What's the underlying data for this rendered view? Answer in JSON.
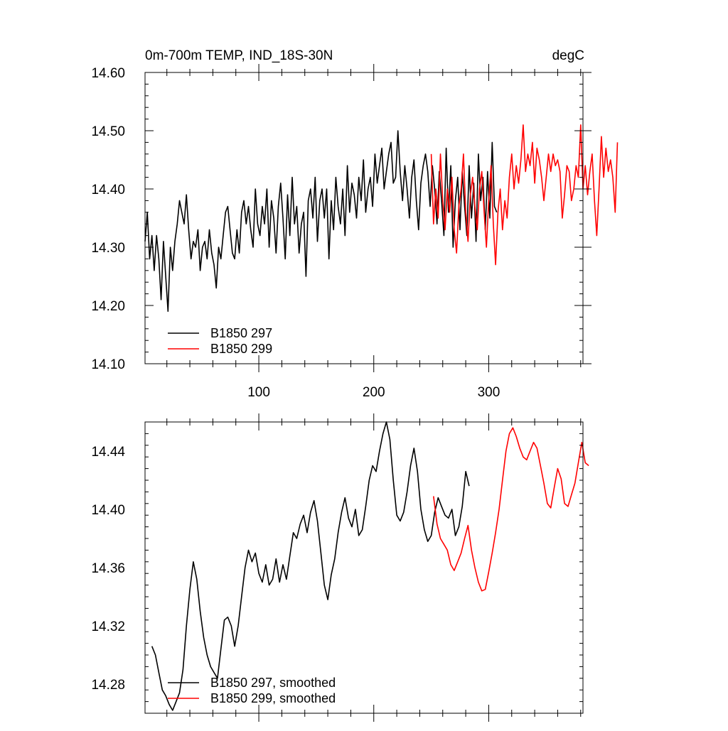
{
  "colors": {
    "background": "#ffffff",
    "axis": "#000000",
    "series_black": "#000000",
    "series_red": "#ff0000"
  },
  "chart_data": [
    {
      "type": "line",
      "title_left": "0m-700m TEMP, IND_18S-30N",
      "title_right": "degC",
      "xlabel": "",
      "ylabel": "",
      "xlim": [
        1,
        382
      ],
      "ylim": [
        14.1,
        14.6
      ],
      "x_ticks": [
        100,
        200,
        300
      ],
      "y_ticks": [
        14.1,
        14.2,
        14.3,
        14.4,
        14.5,
        14.6
      ],
      "y_tick_labels": [
        "14.10",
        "14.20",
        "14.30",
        "14.40",
        "14.50",
        "14.60"
      ],
      "x_tick_labels": [
        "100",
        "200",
        "300"
      ],
      "grid": false,
      "legend_position": "bottom-left",
      "series": [
        {
          "name": "B1850 297",
          "color": "#000000",
          "x_start": 1,
          "x_step": 2,
          "values": [
            14.31,
            14.36,
            14.28,
            14.32,
            14.26,
            14.32,
            14.28,
            14.21,
            14.31,
            14.25,
            14.19,
            14.3,
            14.26,
            14.31,
            14.34,
            14.38,
            14.36,
            14.34,
            14.39,
            14.33,
            14.28,
            14.31,
            14.3,
            14.33,
            14.26,
            14.3,
            14.31,
            14.28,
            14.33,
            14.29,
            14.27,
            14.23,
            14.3,
            14.28,
            14.32,
            14.36,
            14.37,
            14.33,
            14.29,
            14.28,
            14.33,
            14.29,
            14.36,
            14.38,
            14.34,
            14.37,
            14.33,
            14.3,
            14.4,
            14.34,
            14.32,
            14.37,
            14.34,
            14.4,
            14.3,
            14.38,
            14.35,
            14.29,
            14.37,
            14.41,
            14.35,
            14.28,
            14.39,
            14.32,
            14.42,
            14.34,
            14.37,
            14.29,
            14.34,
            14.36,
            14.25,
            14.38,
            14.4,
            14.35,
            14.42,
            14.31,
            14.38,
            14.4,
            14.35,
            14.4,
            14.28,
            14.38,
            14.33,
            14.42,
            14.37,
            14.34,
            14.4,
            14.32,
            14.44,
            14.36,
            14.41,
            14.39,
            14.35,
            14.42,
            14.38,
            14.45,
            14.36,
            14.4,
            14.42,
            14.37,
            14.46,
            14.41,
            14.44,
            14.47,
            14.4,
            14.43,
            14.46,
            14.48,
            14.41,
            14.42,
            14.5,
            14.43,
            14.38,
            14.44,
            14.4,
            14.35,
            14.42,
            14.45,
            14.38,
            14.33,
            14.41,
            14.44,
            14.46,
            14.43,
            14.37,
            14.44,
            14.4,
            14.34,
            14.43,
            14.38,
            14.32,
            14.47,
            14.36,
            14.44,
            14.3,
            14.38,
            14.42,
            14.33,
            14.43,
            14.37,
            14.32,
            14.44,
            14.35,
            14.41,
            14.31,
            14.46,
            14.38,
            14.42,
            14.33,
            14.43,
            14.35,
            14.48,
            14.37,
            14.36
          ]
        },
        {
          "name": "B1850 299",
          "color": "#ff0000",
          "x_start": 250,
          "x_step": 2,
          "values": [
            14.46,
            14.34,
            14.4,
            14.35,
            14.46,
            14.38,
            14.33,
            14.4,
            14.36,
            14.42,
            14.33,
            14.29,
            14.37,
            14.4,
            14.46,
            14.36,
            14.31,
            14.39,
            14.42,
            14.37,
            14.33,
            14.4,
            14.43,
            14.36,
            14.3,
            14.38,
            14.44,
            14.34,
            14.27,
            14.36,
            14.4,
            14.33,
            14.38,
            14.35,
            14.42,
            14.46,
            14.4,
            14.44,
            14.41,
            14.45,
            14.51,
            14.43,
            14.46,
            14.44,
            14.48,
            14.41,
            14.47,
            14.45,
            14.42,
            14.38,
            14.42,
            14.46,
            14.43,
            14.46,
            14.44,
            14.45,
            14.43,
            14.35,
            14.39,
            14.44,
            14.43,
            14.38,
            14.4,
            14.44,
            14.42,
            14.51,
            14.4,
            14.44,
            14.39,
            14.43,
            14.46,
            14.38,
            14.32,
            14.4,
            14.49,
            14.42,
            14.47,
            14.43,
            14.45,
            14.42,
            14.36,
            14.48
          ]
        }
      ]
    },
    {
      "type": "line",
      "xlabel": "",
      "ylabel": "",
      "xlim": [
        1,
        382
      ],
      "ylim": [
        14.26,
        14.46
      ],
      "x_ticks": [
        100,
        200,
        300
      ],
      "y_ticks": [
        14.28,
        14.32,
        14.36,
        14.4,
        14.44
      ],
      "y_tick_labels": [
        "14.28",
        "14.32",
        "14.36",
        "14.40",
        "14.44"
      ],
      "grid": false,
      "legend_position": "bottom-left",
      "series": [
        {
          "name": "B1850 297, smoothed",
          "color": "#000000",
          "x_start": 7,
          "x_step": 3,
          "values": [
            14.306,
            14.3,
            14.288,
            14.276,
            14.272,
            14.266,
            14.262,
            14.268,
            14.274,
            14.29,
            14.32,
            14.345,
            14.364,
            14.352,
            14.33,
            14.312,
            14.3,
            14.292,
            14.288,
            14.284,
            14.304,
            14.324,
            14.326,
            14.32,
            14.306,
            14.32,
            14.34,
            14.36,
            14.372,
            14.364,
            14.37,
            14.356,
            14.35,
            14.362,
            14.348,
            14.352,
            14.366,
            14.35,
            14.362,
            14.352,
            14.368,
            14.384,
            14.38,
            14.39,
            14.396,
            14.384,
            14.398,
            14.406,
            14.392,
            14.37,
            14.348,
            14.338,
            14.355,
            14.366,
            14.384,
            14.398,
            14.408,
            14.394,
            14.388,
            14.4,
            14.382,
            14.386,
            14.402,
            14.42,
            14.43,
            14.426,
            14.44,
            14.452,
            14.46,
            14.448,
            14.42,
            14.396,
            14.392,
            14.398,
            14.412,
            14.43,
            14.442,
            14.426,
            14.4,
            14.386,
            14.378,
            14.382,
            14.398,
            14.408,
            14.402,
            14.396,
            14.394,
            14.4,
            14.382,
            14.388,
            14.402,
            14.426,
            14.416
          ]
        },
        {
          "name": "B1850 299, smoothed",
          "color": "#ff0000",
          "x_start": 252,
          "x_step": 3,
          "values": [
            14.409,
            14.39,
            14.38,
            14.376,
            14.372,
            14.362,
            14.358,
            14.364,
            14.37,
            14.38,
            14.389,
            14.372,
            14.36,
            14.35,
            14.344,
            14.345,
            14.357,
            14.37,
            14.384,
            14.4,
            14.42,
            14.44,
            14.452,
            14.456,
            14.45,
            14.442,
            14.436,
            14.434,
            14.44,
            14.446,
            14.442,
            14.43,
            14.418,
            14.404,
            14.401,
            14.415,
            14.428,
            14.421,
            14.404,
            14.402,
            14.41,
            14.418,
            14.432,
            14.446,
            14.432,
            14.43
          ]
        }
      ]
    }
  ],
  "legends": [
    {
      "labels": [
        "B1850 297",
        "B1850 299"
      ]
    },
    {
      "labels": [
        "B1850 297, smoothed",
        "B1850 299, smoothed"
      ]
    }
  ]
}
